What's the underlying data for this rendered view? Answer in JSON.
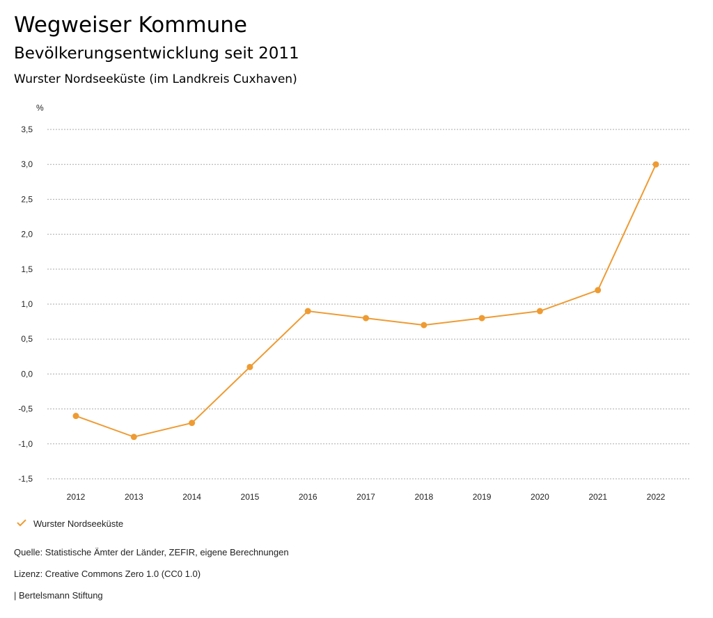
{
  "header": {
    "title": "Wegweiser Kommune",
    "subtitle": "Bevölkerungsentwicklung seit 2011",
    "region": "Wurster Nordseeküste (im Landkreis Cuxhaven)"
  },
  "chart_data": {
    "type": "line",
    "ylabel": "%",
    "x": [
      "2012",
      "2013",
      "2014",
      "2015",
      "2016",
      "2017",
      "2018",
      "2019",
      "2020",
      "2021",
      "2022"
    ],
    "series": [
      {
        "name": "Wurster Nordseeküste",
        "color": "#ee9b33",
        "values": [
          -0.6,
          -0.9,
          -0.7,
          0.1,
          0.9,
          0.8,
          0.7,
          0.8,
          0.9,
          1.2,
          3.0
        ]
      }
    ],
    "ylim": [
      -1.5,
      3.5
    ],
    "yticks": [
      3.5,
      3.0,
      2.5,
      2.0,
      1.5,
      1.0,
      0.5,
      0.0,
      -0.5,
      -1.0,
      -1.5
    ],
    "ytick_labels": [
      "3,5",
      "3,0",
      "2,5",
      "2,0",
      "1,5",
      "1,0",
      "0,5",
      "0,0",
      "-0,5",
      "-1,0",
      "-1,5"
    ],
    "grid": true,
    "legend": "bottom-left"
  },
  "footer": {
    "source": "Quelle: Statistische Ämter der Länder, ZEFIR, eigene Berechnungen",
    "license": "Lizenz: Creative Commons Zero 1.0 (CC0 1.0)",
    "publisher": "| Bertelsmann Stiftung"
  }
}
